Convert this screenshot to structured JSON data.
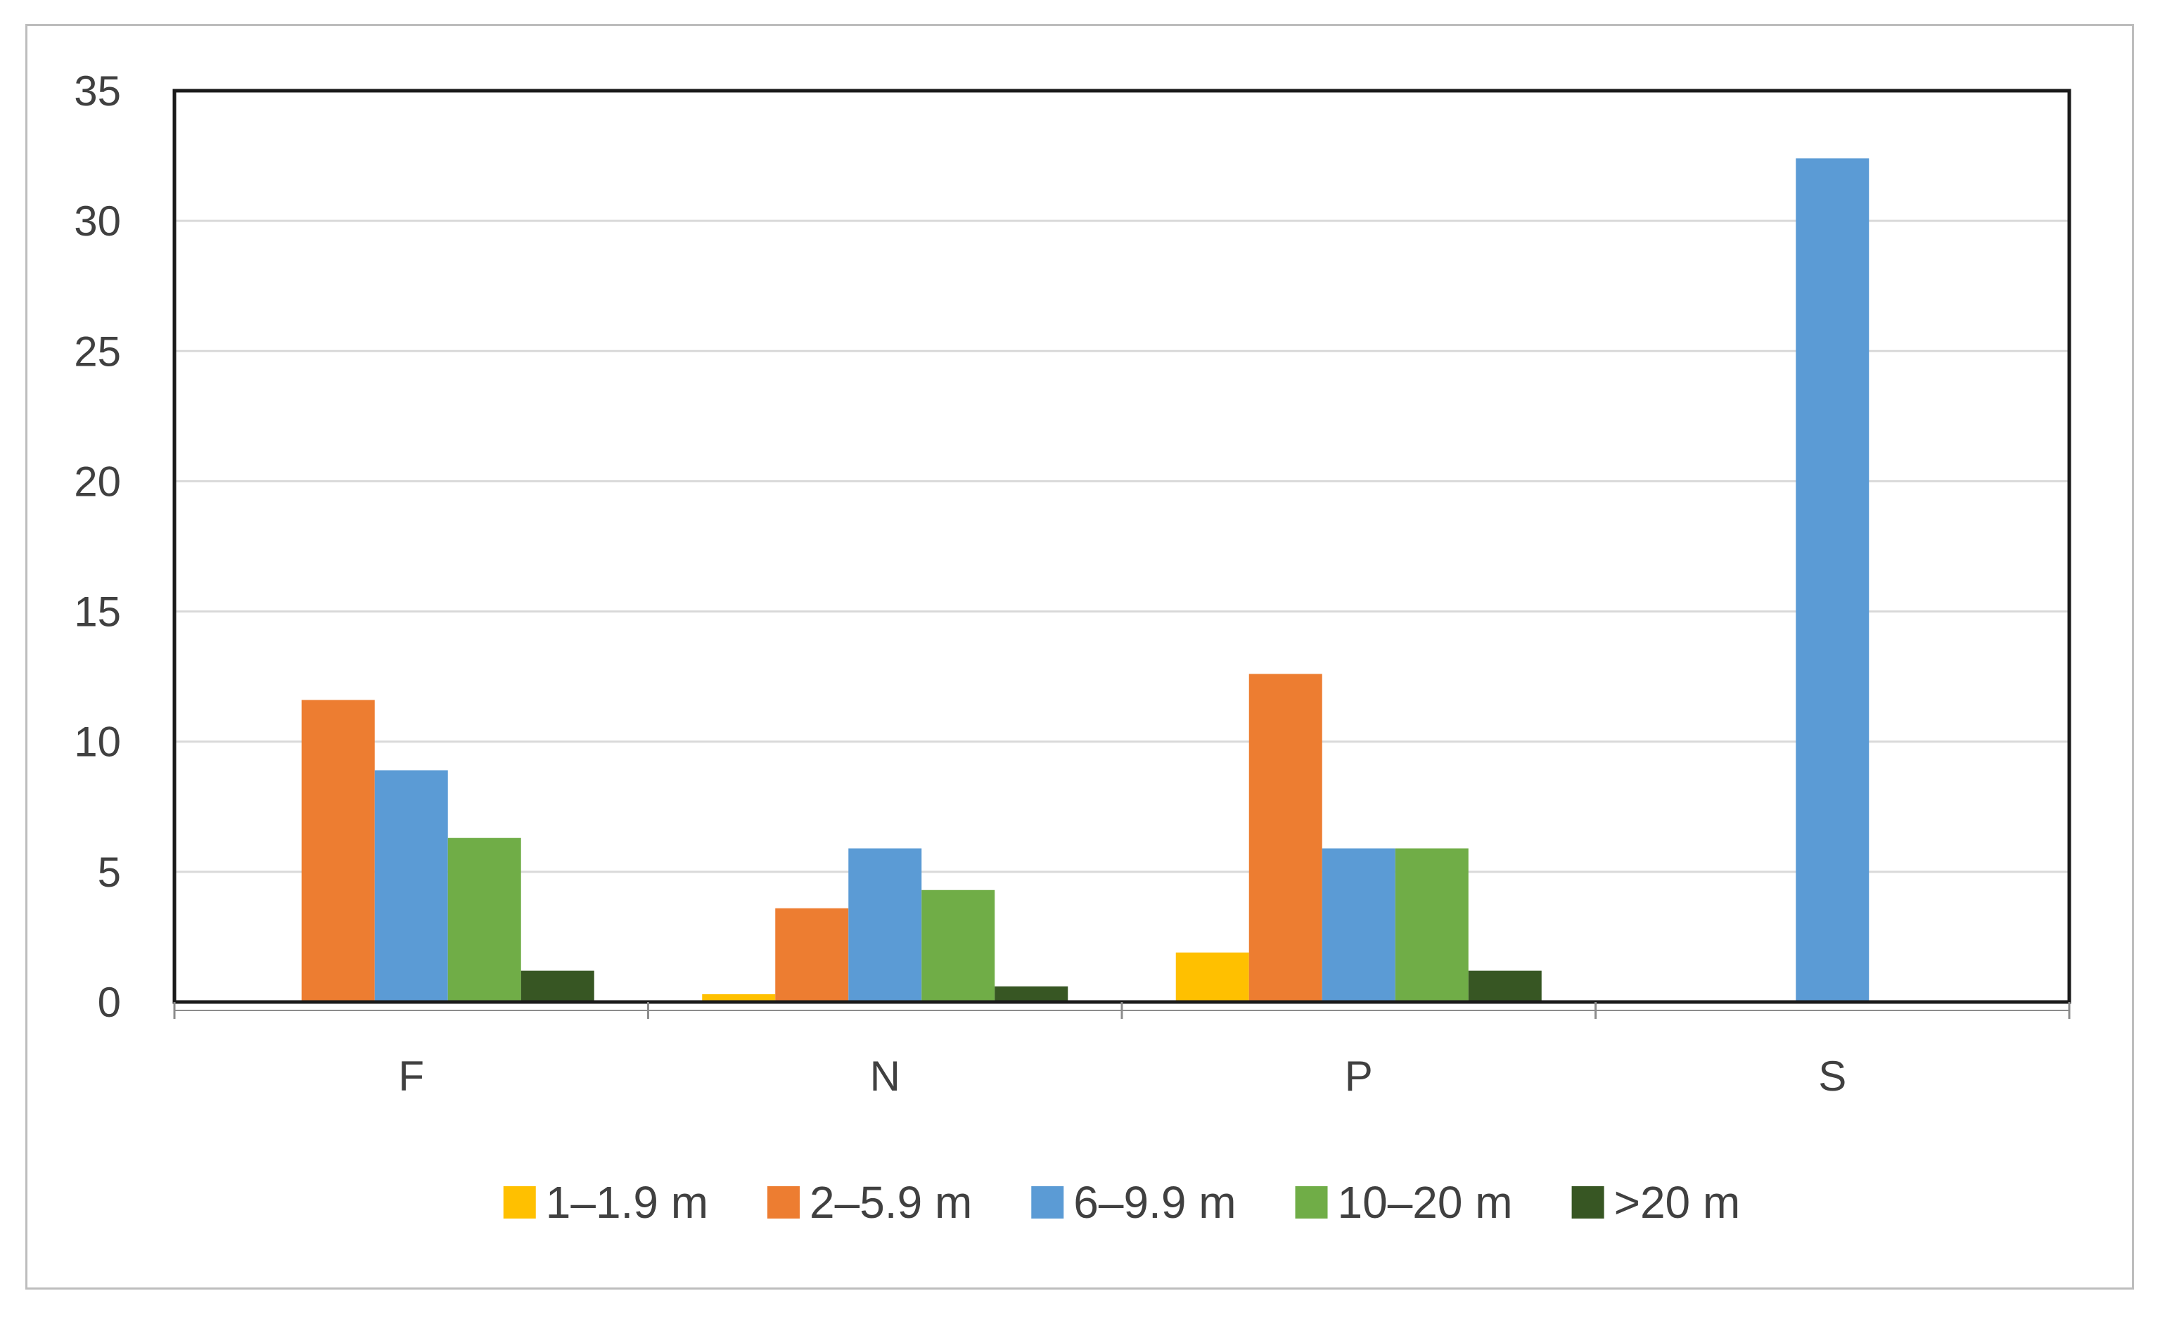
{
  "chart_data": {
    "type": "bar",
    "title": "",
    "xlabel": "",
    "ylabel": "",
    "categories": [
      "F",
      "N",
      "P",
      "S"
    ],
    "ylim": [
      0,
      35
    ],
    "yticks": [
      0,
      5,
      10,
      15,
      20,
      25,
      30,
      35
    ],
    "grid": true,
    "legend_position": "bottom",
    "series": [
      {
        "name": "1–1.9 m",
        "color": "#FFC000",
        "values": [
          0,
          0.3,
          1.9,
          0
        ]
      },
      {
        "name": "2–5.9 m",
        "color": "#ED7D31",
        "values": [
          11.6,
          3.6,
          12.6,
          0
        ]
      },
      {
        "name": "6–9.9 m",
        "color": "#5B9BD5",
        "values": [
          8.9,
          5.9,
          5.9,
          32.4
        ]
      },
      {
        "name": "10–20 m",
        "color": "#70AD47",
        "values": [
          6.3,
          4.3,
          5.9,
          0
        ]
      },
      {
        "name": ">20 m",
        "color": "#375623",
        "values": [
          1.2,
          0.6,
          1.2,
          0
        ]
      }
    ]
  }
}
